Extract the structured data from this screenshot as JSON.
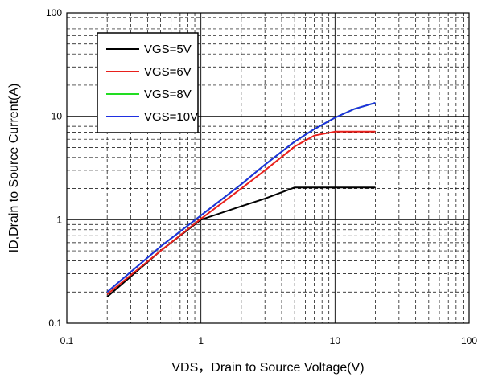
{
  "chart_data": {
    "type": "line",
    "xscale": "log",
    "yscale": "log",
    "xlim": [
      0.1,
      100
    ],
    "ylim": [
      0.1,
      100
    ],
    "xlabel": "VDS，Drain to Source Voltage(V)",
    "ylabel": "ID,Drain to Source Current(A)",
    "grid": true,
    "legend_position": "top-left",
    "xticks": [
      {
        "value": 0.1,
        "label": "0.1"
      },
      {
        "value": 1,
        "label": "1"
      },
      {
        "value": 10,
        "label": "10"
      },
      {
        "value": 100,
        "label": "100"
      }
    ],
    "yticks": [
      {
        "value": 0.1,
        "label": "0.1"
      },
      {
        "value": 1,
        "label": "1"
      },
      {
        "value": 10,
        "label": "10"
      },
      {
        "value": 100,
        "label": "100"
      }
    ],
    "series": [
      {
        "name": "VGS=5V",
        "color": "#000000",
        "points": [
          [
            0.2,
            0.18
          ],
          [
            0.5,
            0.5
          ],
          [
            1,
            1.0
          ],
          [
            2,
            1.35
          ],
          [
            3,
            1.6
          ],
          [
            5,
            2.05
          ],
          [
            10,
            2.05
          ],
          [
            20,
            2.05
          ]
        ]
      },
      {
        "name": "VGS=6V",
        "color": "#e8201c",
        "points": [
          [
            0.2,
            0.19
          ],
          [
            0.5,
            0.5
          ],
          [
            1,
            1.02
          ],
          [
            2,
            2.0
          ],
          [
            3,
            3.0
          ],
          [
            5,
            5.1
          ],
          [
            7,
            6.5
          ],
          [
            10,
            7.1
          ],
          [
            20,
            7.1
          ]
        ]
      },
      {
        "name": "VGS=8V",
        "color": "#22dd22",
        "points": [
          [
            0.2,
            0.2
          ],
          [
            0.5,
            0.55
          ],
          [
            1,
            1.1
          ],
          [
            2,
            2.2
          ],
          [
            3,
            3.4
          ],
          [
            5,
            5.7
          ],
          [
            7,
            7.5
          ],
          [
            10,
            9.7
          ],
          [
            14,
            11.8
          ],
          [
            20,
            13.5
          ]
        ]
      },
      {
        "name": "VGS=10V",
        "color": "#1f2fe0",
        "points": [
          [
            0.2,
            0.2
          ],
          [
            0.5,
            0.55
          ],
          [
            1,
            1.1
          ],
          [
            2,
            2.2
          ],
          [
            3,
            3.4
          ],
          [
            5,
            5.7
          ],
          [
            7,
            7.5
          ],
          [
            10,
            9.7
          ],
          [
            14,
            11.8
          ],
          [
            20,
            13.5
          ]
        ]
      }
    ]
  }
}
